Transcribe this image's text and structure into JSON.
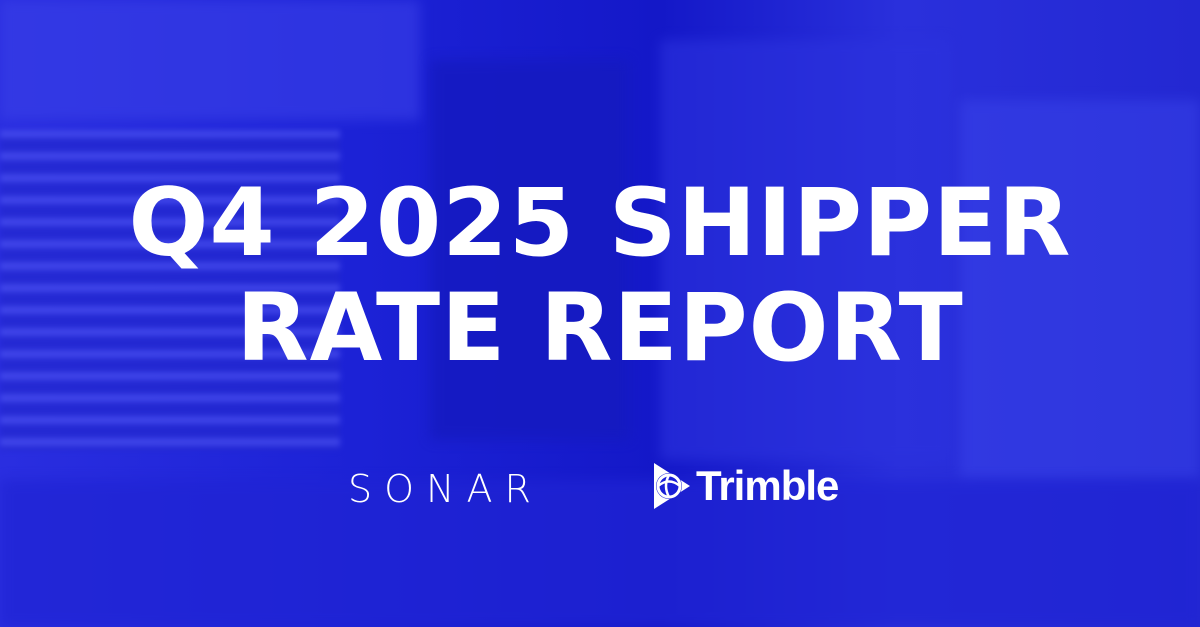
{
  "title": {
    "line1": "Q4 2025 SHIPPER",
    "line2": "RATE REPORT"
  },
  "logos": {
    "sonar": "SONAR",
    "trimble": "Trimble"
  },
  "colors": {
    "background": "#1a1fd8",
    "text": "#ffffff"
  }
}
